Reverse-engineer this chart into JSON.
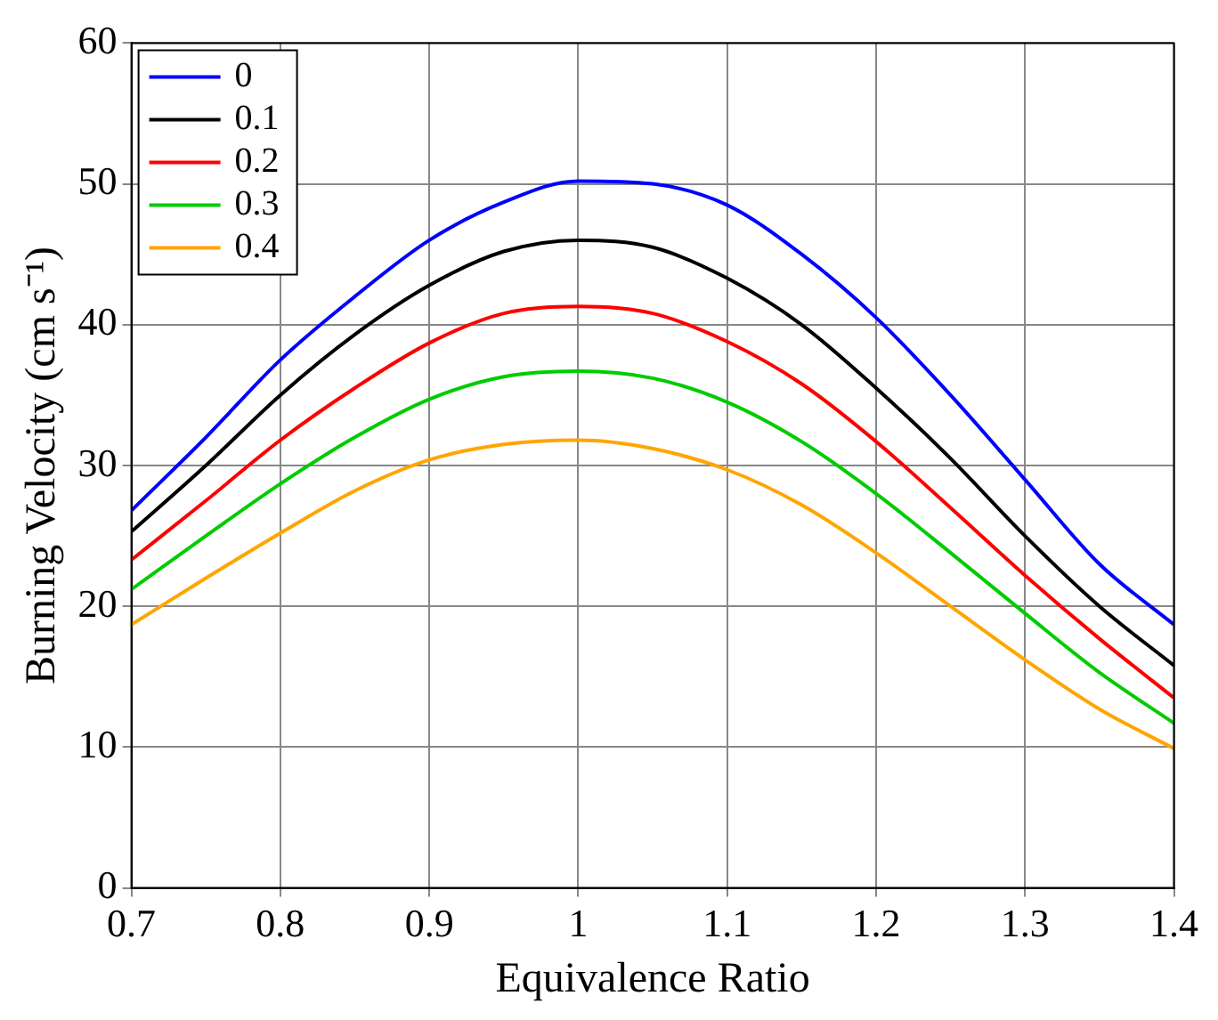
{
  "chart_data": {
    "type": "line",
    "xlabel": "Equivalence Ratio",
    "ylabel": "Burning Velocity (cm s⁻¹)",
    "x": [
      0.7,
      0.75,
      0.8,
      0.85,
      0.9,
      0.95,
      1.0,
      1.05,
      1.1,
      1.15,
      1.2,
      1.25,
      1.3,
      1.35,
      1.4
    ],
    "series": [
      {
        "name": "0",
        "color": "#0000ff",
        "values": [
          26.8,
          32,
          37.5,
          42,
          46,
          48.7,
          50.2,
          50,
          48.5,
          45,
          40.5,
          35,
          29,
          23,
          18.7
        ]
      },
      {
        "name": "0.1",
        "color": "#000000",
        "values": [
          25.3,
          30,
          35,
          39.3,
          42.8,
          45.2,
          46,
          45.5,
          43.3,
          40,
          35.5,
          30.5,
          25,
          20,
          15.8
        ]
      },
      {
        "name": "0.2",
        "color": "#ff0000",
        "values": [
          23.3,
          27.5,
          31.8,
          35.5,
          38.7,
          40.8,
          41.3,
          40.8,
          38.8,
          35.8,
          31.7,
          27,
          22.2,
          17.7,
          13.5
        ]
      },
      {
        "name": "0.3",
        "color": "#00cc00",
        "values": [
          21.2,
          25,
          28.7,
          32,
          34.7,
          36.3,
          36.7,
          36.2,
          34.5,
          31.7,
          28,
          23.8,
          19.5,
          15.3,
          11.7
        ]
      },
      {
        "name": "0.4",
        "color": "#ffa500",
        "values": [
          18.7,
          22,
          25.2,
          28.2,
          30.4,
          31.5,
          31.8,
          31.2,
          29.7,
          27.2,
          23.8,
          20,
          16.2,
          12.7,
          9.9
        ]
      }
    ],
    "xlim": [
      0.7,
      1.4
    ],
    "xticks": [
      0.7,
      0.8,
      0.9,
      1,
      1.1,
      1.2,
      1.3,
      1.4
    ],
    "ylim": [
      0,
      60
    ],
    "yticks": [
      0,
      10,
      20,
      30,
      40,
      50,
      60
    ],
    "grid": true,
    "legend": "top left",
    "marker": "none",
    "line_style": "solid"
  }
}
